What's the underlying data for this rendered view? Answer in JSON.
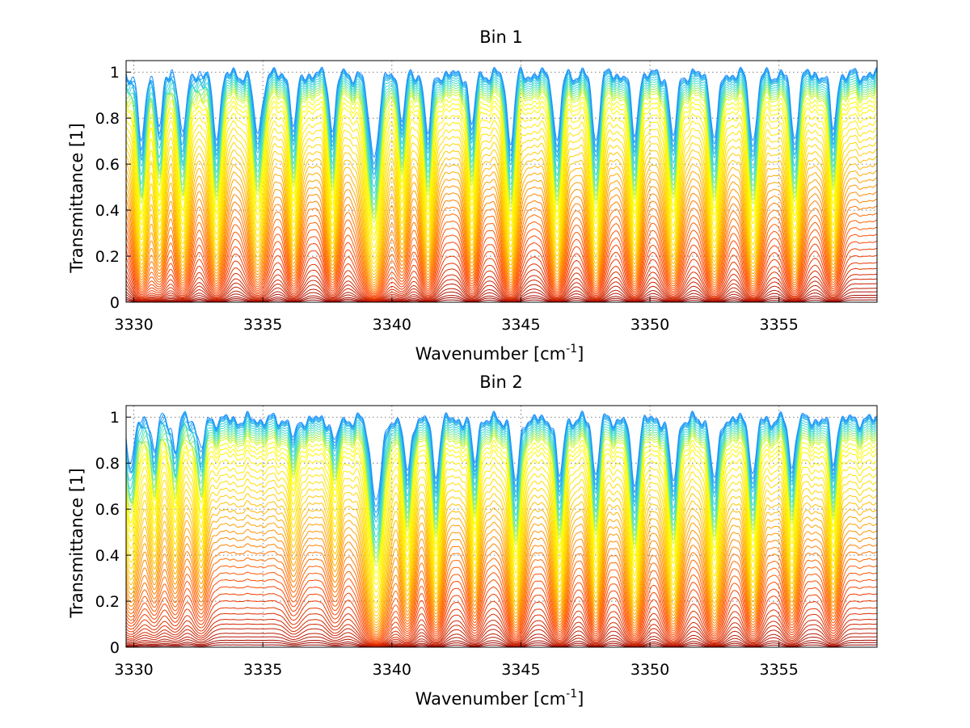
{
  "chart_data": [
    {
      "type": "line",
      "title": "Bin 1",
      "xlabel": "Wavenumber [cm-1]",
      "xlabel_base": "Wavenumber [cm",
      "xlabel_sup": "-1",
      "xlabel_close": "]",
      "ylabel": "Transmittance [1]",
      "xlim": [
        3329.7,
        3358.8
      ],
      "ylim": [
        0,
        1.05
      ],
      "xticks": [
        3330,
        3335,
        3340,
        3345,
        3350,
        3355
      ],
      "yticks": [
        0,
        0.2,
        0.4,
        0.6,
        0.8,
        1
      ],
      "grid": true,
      "num_series": 48,
      "colormap": [
        "#8b0000",
        "#cc2200",
        "#ff4500",
        "#ff8c00",
        "#ffd700",
        "#ffff00",
        "#40e0d0",
        "#1e90ff"
      ],
      "baseline_levels": [
        0.0,
        0.01,
        0.02,
        0.03,
        0.045,
        0.06,
        0.08,
        0.1,
        0.12,
        0.145,
        0.17,
        0.2,
        0.23,
        0.26,
        0.29,
        0.32,
        0.35,
        0.38,
        0.41,
        0.44,
        0.47,
        0.5,
        0.53,
        0.56,
        0.59,
        0.62,
        0.65,
        0.68,
        0.71,
        0.74,
        0.77,
        0.8,
        0.83,
        0.85,
        0.87,
        0.89,
        0.9,
        0.91,
        0.92,
        0.93,
        0.94,
        0.95,
        0.96,
        0.97,
        0.975,
        0.98,
        0.985,
        0.99
      ],
      "absorption_lines": [
        {
          "center": 3330.3,
          "depth": 0.9,
          "width": 0.17
        },
        {
          "center": 3331.0,
          "depth": 0.7,
          "width": 0.15
        },
        {
          "center": 3331.9,
          "depth": 0.8,
          "width": 0.17
        },
        {
          "center": 3333.2,
          "depth": 0.8,
          "width": 0.18
        },
        {
          "center": 3334.8,
          "depth": 0.78,
          "width": 0.2
        },
        {
          "center": 3336.2,
          "depth": 0.7,
          "width": 0.15
        },
        {
          "center": 3337.7,
          "depth": 0.72,
          "width": 0.15
        },
        {
          "center": 3339.3,
          "depth": 1.1,
          "width": 0.25
        },
        {
          "center": 3340.4,
          "depth": 0.55,
          "width": 0.15
        },
        {
          "center": 3341.4,
          "depth": 0.78,
          "width": 0.16
        },
        {
          "center": 3343.1,
          "depth": 0.7,
          "width": 0.14
        },
        {
          "center": 3344.6,
          "depth": 0.9,
          "width": 0.17
        },
        {
          "center": 3346.4,
          "depth": 0.9,
          "width": 0.17
        },
        {
          "center": 3347.9,
          "depth": 0.88,
          "width": 0.17
        },
        {
          "center": 3349.4,
          "depth": 0.82,
          "width": 0.16
        },
        {
          "center": 3350.9,
          "depth": 0.82,
          "width": 0.18
        },
        {
          "center": 3352.5,
          "depth": 0.85,
          "width": 0.18
        },
        {
          "center": 3354.0,
          "depth": 0.88,
          "width": 0.18
        },
        {
          "center": 3355.6,
          "depth": 0.85,
          "width": 0.17
        },
        {
          "center": 3357.1,
          "depth": 0.72,
          "width": 0.15
        }
      ]
    },
    {
      "type": "line",
      "title": "Bin 2",
      "xlabel": "Wavenumber [cm-1]",
      "xlabel_base": "Wavenumber [cm",
      "xlabel_sup": "-1",
      "xlabel_close": "]",
      "ylabel": "Transmittance [1]",
      "xlim": [
        3329.7,
        3358.8
      ],
      "ylim": [
        0,
        1.05
      ],
      "xticks": [
        3330,
        3335,
        3340,
        3345,
        3350,
        3355
      ],
      "yticks": [
        0,
        0.2,
        0.4,
        0.6,
        0.8,
        1
      ],
      "grid": true,
      "num_series": 48,
      "colormap": [
        "#8b0000",
        "#cc2200",
        "#ff4500",
        "#ff8c00",
        "#ffd700",
        "#ffff00",
        "#40e0d0",
        "#1e90ff"
      ],
      "baseline_levels": [
        0.0,
        0.01,
        0.02,
        0.03,
        0.045,
        0.06,
        0.08,
        0.1,
        0.12,
        0.145,
        0.17,
        0.2,
        0.23,
        0.26,
        0.29,
        0.32,
        0.35,
        0.38,
        0.41,
        0.44,
        0.47,
        0.5,
        0.53,
        0.56,
        0.59,
        0.62,
        0.65,
        0.68,
        0.71,
        0.74,
        0.77,
        0.8,
        0.83,
        0.85,
        0.87,
        0.89,
        0.9,
        0.91,
        0.92,
        0.93,
        0.94,
        0.95,
        0.96,
        0.97,
        0.975,
        0.98,
        0.985,
        0.99
      ],
      "absorption_lines": [
        {
          "center": 3329.9,
          "depth": 0.5,
          "width": 0.2
        },
        {
          "center": 3330.8,
          "depth": 0.35,
          "width": 0.15
        },
        {
          "center": 3331.6,
          "depth": 0.35,
          "width": 0.15
        },
        {
          "center": 3332.6,
          "depth": 0.4,
          "width": 0.15
        },
        {
          "center": 3336.2,
          "depth": 0.25,
          "width": 0.14
        },
        {
          "center": 3337.8,
          "depth": 0.3,
          "width": 0.14
        },
        {
          "center": 3339.4,
          "depth": 1.1,
          "width": 0.26
        },
        {
          "center": 3340.6,
          "depth": 0.7,
          "width": 0.16
        },
        {
          "center": 3341.7,
          "depth": 0.72,
          "width": 0.16
        },
        {
          "center": 3343.2,
          "depth": 0.55,
          "width": 0.14
        },
        {
          "center": 3344.8,
          "depth": 0.85,
          "width": 0.17
        },
        {
          "center": 3346.5,
          "depth": 0.78,
          "width": 0.16
        },
        {
          "center": 3347.9,
          "depth": 0.72,
          "width": 0.15
        },
        {
          "center": 3349.4,
          "depth": 0.85,
          "width": 0.18
        },
        {
          "center": 3350.9,
          "depth": 0.82,
          "width": 0.18
        },
        {
          "center": 3352.5,
          "depth": 0.8,
          "width": 0.18
        },
        {
          "center": 3354.0,
          "depth": 0.72,
          "width": 0.16
        },
        {
          "center": 3355.5,
          "depth": 0.6,
          "width": 0.15
        },
        {
          "center": 3357.1,
          "depth": 0.55,
          "width": 0.14
        }
      ]
    }
  ]
}
